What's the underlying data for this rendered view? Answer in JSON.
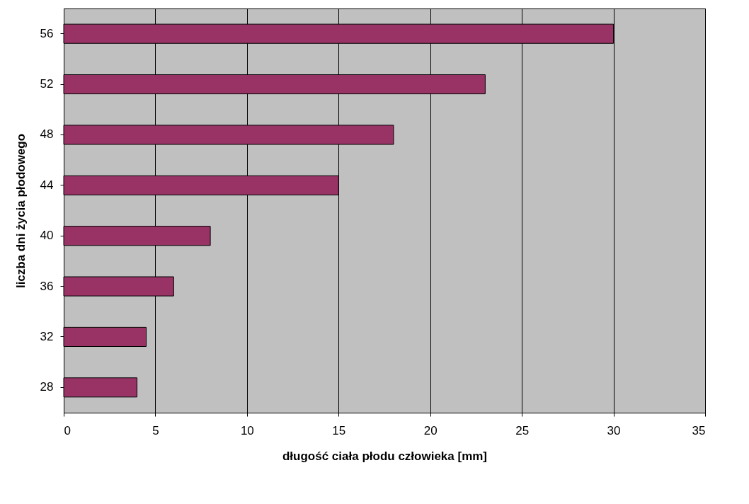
{
  "chart_data": {
    "type": "bar",
    "orientation": "horizontal",
    "xlabel": "długość ciała płodu człowieka [mm]",
    "ylabel": "liczba dni życia płodowego",
    "categories": [
      "56",
      "52",
      "48",
      "44",
      "40",
      "36",
      "32",
      "28"
    ],
    "values": [
      30,
      23,
      18,
      15,
      8,
      6,
      4.5,
      4
    ],
    "color": "#993366",
    "xlim": [
      0,
      35
    ],
    "xticks": [
      0,
      5,
      10,
      15,
      20,
      25,
      30,
      35
    ],
    "grid": "x"
  }
}
